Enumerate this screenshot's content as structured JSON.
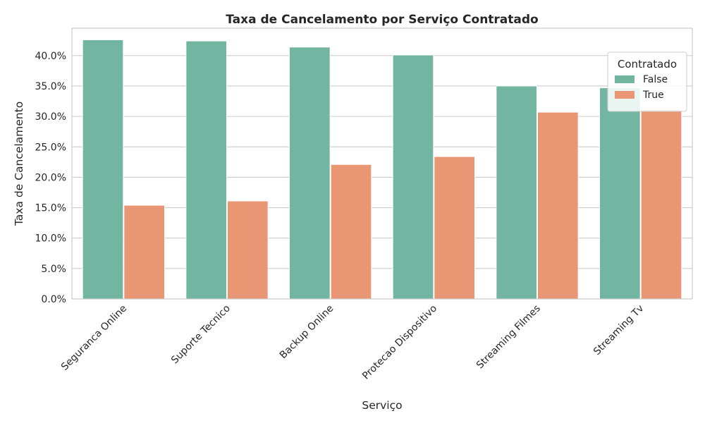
{
  "chart_data": {
    "type": "bar",
    "title": "Taxa de Cancelamento por Serviço Contratado",
    "xlabel": "Serviço",
    "ylabel": "Taxa de Cancelamento",
    "categories": [
      "Seguranca Online",
      "Suporte Tecnico",
      "Backup Online",
      "Protecao Dispositivo",
      "Streaming Filmes",
      "Streaming Tv"
    ],
    "series": [
      {
        "name": "False",
        "color": "#72b6a1",
        "values": [
          0.426,
          0.424,
          0.414,
          0.401,
          0.35,
          0.347
        ]
      },
      {
        "name": "True",
        "color": "#e99675",
        "values": [
          0.154,
          0.161,
          0.221,
          0.234,
          0.307,
          0.311
        ]
      }
    ],
    "ylim": [
      0,
      0.445
    ],
    "yticks": [
      0.0,
      0.05,
      0.1,
      0.15,
      0.2,
      0.25,
      0.3,
      0.35,
      0.4
    ],
    "ytick_labels": [
      "0.0%",
      "5.0%",
      "10.0%",
      "15.0%",
      "20.0%",
      "25.0%",
      "30.0%",
      "35.0%",
      "40.0%"
    ],
    "grid": true,
    "legend": {
      "title": "Contratado",
      "position": "top-right"
    }
  }
}
